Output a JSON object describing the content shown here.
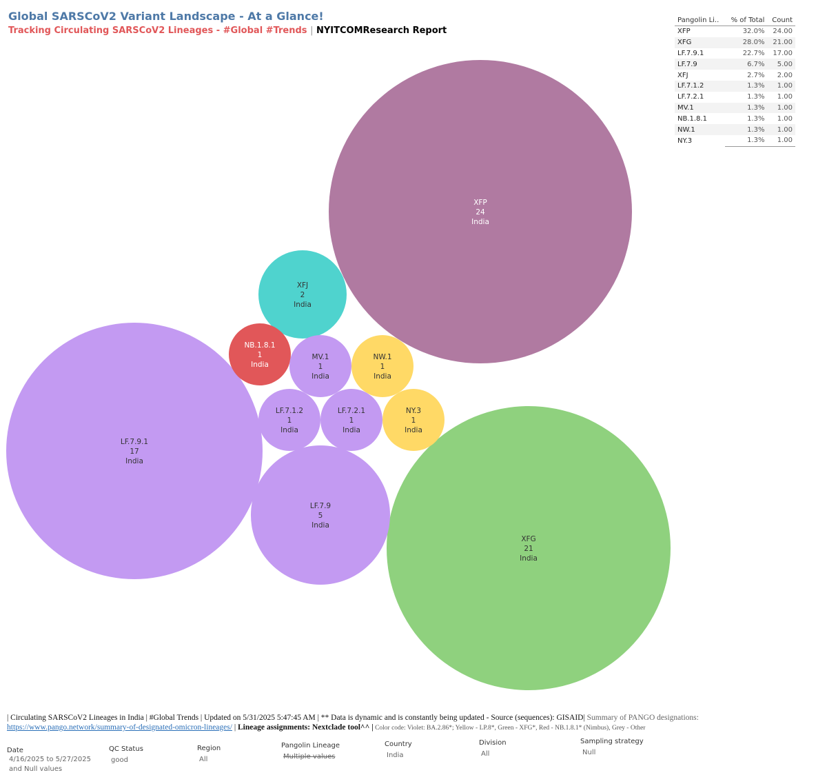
{
  "header": {
    "title": "Global SARSCoV2 Variant Landscape - At a Glance!",
    "subtitle_part1": "Tracking Circulating SARSCoV2 Lineages - #Global #Trends",
    "subtitle_sep": "|",
    "subtitle_part2": "NYITCOMResearch Report"
  },
  "chart_data": {
    "type": "bubble",
    "bubbles": [
      {
        "lineage": "XFP",
        "count": "24",
        "country": "India",
        "color": "#b07aa1",
        "text_color": "#ffffff"
      },
      {
        "lineage": "XFG",
        "count": "21",
        "country": "India",
        "color": "#8fd17e",
        "text_color": "#333333"
      },
      {
        "lineage": "LF.7.9.1",
        "count": "17",
        "country": "India",
        "color": "#c39af2",
        "text_color": "#333333"
      },
      {
        "lineage": "LF.7.9",
        "count": "5",
        "country": "India",
        "color": "#c39af2",
        "text_color": "#333333"
      },
      {
        "lineage": "XFJ",
        "count": "2",
        "country": "India",
        "color": "#4fd3ce",
        "text_color": "#333333"
      },
      {
        "lineage": "NB.1.8.1",
        "count": "1",
        "country": "India",
        "color": "#e15759",
        "text_color": "#ffffff"
      },
      {
        "lineage": "MV.1",
        "count": "1",
        "country": "India",
        "color": "#c39af2",
        "text_color": "#333333"
      },
      {
        "lineage": "NW.1",
        "count": "1",
        "country": "India",
        "color": "#ffd966",
        "text_color": "#333333"
      },
      {
        "lineage": "LF.7.1.2",
        "count": "1",
        "country": "India",
        "color": "#c39af2",
        "text_color": "#333333"
      },
      {
        "lineage": "LF.7.2.1",
        "count": "1",
        "country": "India",
        "color": "#c39af2",
        "text_color": "#333333"
      },
      {
        "lineage": "NY.3",
        "count": "1",
        "country": "India",
        "color": "#ffd966",
        "text_color": "#333333"
      }
    ]
  },
  "table": {
    "headers": [
      "Pangolin Li..",
      "% of Total",
      "Count"
    ],
    "rows": [
      [
        "XFP",
        "32.0%",
        "24.00"
      ],
      [
        "XFG",
        "28.0%",
        "21.00"
      ],
      [
        "LF.7.9.1",
        "22.7%",
        "17.00"
      ],
      [
        "LF.7.9",
        "6.7%",
        "5.00"
      ],
      [
        "XFJ",
        "2.7%",
        "2.00"
      ],
      [
        "LF.7.1.2",
        "1.3%",
        "1.00"
      ],
      [
        "LF.7.2.1",
        "1.3%",
        "1.00"
      ],
      [
        "MV.1",
        "1.3%",
        "1.00"
      ],
      [
        "NB.1.8.1",
        "1.3%",
        "1.00"
      ],
      [
        "NW.1",
        "1.3%",
        "1.00"
      ],
      [
        "NY.3",
        "1.3%",
        "1.00"
      ]
    ]
  },
  "footer": {
    "line1_main": "| Circulating SARSCoV2 Lineages in India | #Global Trends | Updated on 5/31/2025 5:47:45 AM | ** Data is dynamic and is constantly being updated - Source (sequences): GISAID|",
    "line1_grey": " Summary of PANGO designations:",
    "link": "https://www.pango.network/summary-of-designated-omicron-lineages/",
    "link_sep": " | ",
    "bold": "Lineage assignments: Nextclade tool^^ |",
    "color_code": " Color code: Violet: BA.2.86*; Yellow - LP.8*, Green - XFG*, Red - NB.1.8.1* (Nimbus),  Grey - Other"
  },
  "filters": [
    {
      "label": "Date",
      "value": "4/16/2025 to 5/27/2025",
      "value2": "and Null values"
    },
    {
      "label": "QC Status",
      "value": "good"
    },
    {
      "label": "Region",
      "value": "All"
    },
    {
      "label": "Pangolin Lineage",
      "value": "Multiple values"
    },
    {
      "label": "Country",
      "value": "India"
    },
    {
      "label": "Division",
      "value": "All"
    },
    {
      "label": "Sampling strategy",
      "value": "Null"
    }
  ]
}
